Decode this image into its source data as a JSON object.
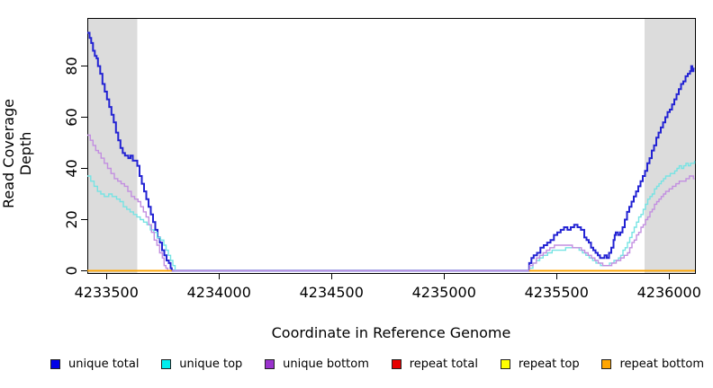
{
  "chart_data": {
    "type": "line",
    "style": "step-after",
    "title": "",
    "xlabel": "Coordinate in Reference Genome",
    "ylabel": "Read Coverage Depth",
    "xlim": [
      4233415,
      4236115
    ],
    "ylim": [
      -0.9,
      98.8
    ],
    "x_ticks": [
      4233500,
      4234000,
      4234500,
      4235000,
      4235500,
      4236000
    ],
    "y_ticks": [
      0,
      20,
      40,
      60,
      80
    ],
    "grid": false,
    "legend_position": "bottom",
    "background_color": "#ffffff",
    "shade_color": "#dcdcdc",
    "axis_color": "#000000",
    "shaded_regions": [
      {
        "x0": 4233415,
        "x1": 4233637
      },
      {
        "x0": 4235891,
        "x1": 4236115
      }
    ],
    "series": [
      {
        "name": "unique total",
        "color": "#2323d3",
        "legend_color": "#0000e6",
        "line_width": 2,
        "points": [
          [
            4233415,
            93
          ],
          [
            4233425,
            91
          ],
          [
            4233432,
            89
          ],
          [
            4233440,
            86
          ],
          [
            4233448,
            84
          ],
          [
            4233456,
            83
          ],
          [
            4233462,
            80
          ],
          [
            4233472,
            77
          ],
          [
            4233482,
            73
          ],
          [
            4233492,
            70
          ],
          [
            4233502,
            67
          ],
          [
            4233512,
            64
          ],
          [
            4233522,
            61
          ],
          [
            4233532,
            58
          ],
          [
            4233542,
            54
          ],
          [
            4233552,
            51
          ],
          [
            4233562,
            48
          ],
          [
            4233572,
            46
          ],
          [
            4233582,
            45
          ],
          [
            4233597,
            44
          ],
          [
            4233607,
            45
          ],
          [
            4233617,
            43
          ],
          [
            4233627,
            43
          ],
          [
            4233637,
            41
          ],
          [
            4233647,
            37
          ],
          [
            4233657,
            34
          ],
          [
            4233667,
            31
          ],
          [
            4233677,
            28
          ],
          [
            4233687,
            25
          ],
          [
            4233697,
            22
          ],
          [
            4233707,
            19
          ],
          [
            4233717,
            16
          ],
          [
            4233727,
            13
          ],
          [
            4233737,
            11
          ],
          [
            4233747,
            8
          ],
          [
            4233757,
            6
          ],
          [
            4233767,
            4
          ],
          [
            4233777,
            3
          ],
          [
            4233785,
            1
          ],
          [
            4233790,
            0
          ],
          [
            4235378,
            3
          ],
          [
            4235388,
            5
          ],
          [
            4235398,
            6
          ],
          [
            4235413,
            7
          ],
          [
            4235428,
            9
          ],
          [
            4235443,
            10
          ],
          [
            4235458,
            11
          ],
          [
            4235473,
            12
          ],
          [
            4235488,
            14
          ],
          [
            4235503,
            15
          ],
          [
            4235518,
            16
          ],
          [
            4235533,
            17
          ],
          [
            4235548,
            16
          ],
          [
            4235563,
            17
          ],
          [
            4235578,
            18
          ],
          [
            4235593,
            17
          ],
          [
            4235608,
            16
          ],
          [
            4235623,
            13
          ],
          [
            4235633,
            12
          ],
          [
            4235643,
            11
          ],
          [
            4235653,
            9
          ],
          [
            4235663,
            8
          ],
          [
            4235673,
            7
          ],
          [
            4235683,
            6
          ],
          [
            4235693,
            5
          ],
          [
            4235703,
            5
          ],
          [
            4235713,
            6
          ],
          [
            4235723,
            5
          ],
          [
            4235733,
            7
          ],
          [
            4235743,
            9
          ],
          [
            4235753,
            12
          ],
          [
            4235758,
            14
          ],
          [
            4235763,
            15
          ],
          [
            4235773,
            14
          ],
          [
            4235783,
            15
          ],
          [
            4235793,
            17
          ],
          [
            4235803,
            20
          ],
          [
            4235813,
            23
          ],
          [
            4235823,
            25
          ],
          [
            4235833,
            27
          ],
          [
            4235843,
            29
          ],
          [
            4235853,
            31
          ],
          [
            4235863,
            33
          ],
          [
            4235873,
            35
          ],
          [
            4235883,
            37
          ],
          [
            4235893,
            39
          ],
          [
            4235903,
            42
          ],
          [
            4235913,
            44
          ],
          [
            4235923,
            47
          ],
          [
            4235933,
            49
          ],
          [
            4235943,
            52
          ],
          [
            4235953,
            54
          ],
          [
            4235963,
            56
          ],
          [
            4235973,
            58
          ],
          [
            4235983,
            60
          ],
          [
            4235993,
            62
          ],
          [
            4236003,
            63
          ],
          [
            4236013,
            65
          ],
          [
            4236023,
            67
          ],
          [
            4236033,
            69
          ],
          [
            4236043,
            71
          ],
          [
            4236053,
            73
          ],
          [
            4236063,
            74
          ],
          [
            4236073,
            76
          ],
          [
            4236083,
            77
          ],
          [
            4236093,
            78
          ],
          [
            4236098,
            80
          ],
          [
            4236103,
            78
          ],
          [
            4236108,
            79
          ],
          [
            4236113,
            79
          ]
        ]
      },
      {
        "name": "unique top",
        "color": "#76e3e3",
        "legend_color": "#00eeee",
        "line_width": 1.4,
        "points": [
          [
            4233415,
            37
          ],
          [
            4233430,
            35
          ],
          [
            4233445,
            33
          ],
          [
            4233460,
            31
          ],
          [
            4233475,
            30
          ],
          [
            4233490,
            29
          ],
          [
            4233510,
            30
          ],
          [
            4233525,
            29
          ],
          [
            4233545,
            28
          ],
          [
            4233560,
            27
          ],
          [
            4233575,
            25
          ],
          [
            4233590,
            24
          ],
          [
            4233605,
            23
          ],
          [
            4233620,
            22
          ],
          [
            4233635,
            21
          ],
          [
            4233650,
            20
          ],
          [
            4233665,
            19
          ],
          [
            4233680,
            18
          ],
          [
            4233695,
            16
          ],
          [
            4233710,
            15
          ],
          [
            4233725,
            13
          ],
          [
            4233740,
            12
          ],
          [
            4233755,
            10
          ],
          [
            4233765,
            8
          ],
          [
            4233775,
            6
          ],
          [
            4233785,
            4
          ],
          [
            4233795,
            2
          ],
          [
            4233805,
            0
          ],
          [
            4235380,
            1
          ],
          [
            4235395,
            3
          ],
          [
            4235410,
            4
          ],
          [
            4235425,
            5
          ],
          [
            4235440,
            6
          ],
          [
            4235460,
            7
          ],
          [
            4235480,
            8
          ],
          [
            4235510,
            8
          ],
          [
            4235540,
            9
          ],
          [
            4235570,
            9
          ],
          [
            4235600,
            8
          ],
          [
            4235615,
            7
          ],
          [
            4235630,
            6
          ],
          [
            4235645,
            5
          ],
          [
            4235660,
            4
          ],
          [
            4235675,
            3
          ],
          [
            4235695,
            2
          ],
          [
            4235715,
            2
          ],
          [
            4235735,
            3
          ],
          [
            4235755,
            4
          ],
          [
            4235775,
            5
          ],
          [
            4235785,
            6
          ],
          [
            4235795,
            8
          ],
          [
            4235805,
            9
          ],
          [
            4235815,
            11
          ],
          [
            4235825,
            13
          ],
          [
            4235835,
            15
          ],
          [
            4235845,
            17
          ],
          [
            4235855,
            19
          ],
          [
            4235865,
            21
          ],
          [
            4235875,
            22
          ],
          [
            4235885,
            24
          ],
          [
            4235895,
            26
          ],
          [
            4235905,
            28
          ],
          [
            4235915,
            29
          ],
          [
            4235925,
            30
          ],
          [
            4235935,
            32
          ],
          [
            4235945,
            33
          ],
          [
            4235955,
            34
          ],
          [
            4235965,
            35
          ],
          [
            4235975,
            36
          ],
          [
            4235985,
            37
          ],
          [
            4235995,
            37
          ],
          [
            4236005,
            38
          ],
          [
            4236015,
            38
          ],
          [
            4236025,
            39
          ],
          [
            4236035,
            40
          ],
          [
            4236045,
            41
          ],
          [
            4236055,
            40
          ],
          [
            4236065,
            41
          ],
          [
            4236075,
            42
          ],
          [
            4236085,
            41
          ],
          [
            4236095,
            42
          ],
          [
            4236105,
            42
          ],
          [
            4236113,
            43
          ]
        ]
      },
      {
        "name": "unique bottom",
        "color": "#c28ee0",
        "legend_color": "#9a32cd",
        "line_width": 1.4,
        "points": [
          [
            4233415,
            53
          ],
          [
            4233428,
            51
          ],
          [
            4233440,
            49
          ],
          [
            4233452,
            47
          ],
          [
            4233464,
            46
          ],
          [
            4233476,
            44
          ],
          [
            4233490,
            42
          ],
          [
            4233505,
            40
          ],
          [
            4233520,
            38
          ],
          [
            4233535,
            36
          ],
          [
            4233550,
            35
          ],
          [
            4233565,
            34
          ],
          [
            4233580,
            33
          ],
          [
            4233595,
            31
          ],
          [
            4233610,
            29
          ],
          [
            4233625,
            28
          ],
          [
            4233640,
            27
          ],
          [
            4233652,
            25
          ],
          [
            4233664,
            23
          ],
          [
            4233676,
            21
          ],
          [
            4233688,
            18
          ],
          [
            4233700,
            15
          ],
          [
            4233712,
            12
          ],
          [
            4233724,
            10
          ],
          [
            4233736,
            7
          ],
          [
            4233748,
            5
          ],
          [
            4233756,
            2
          ],
          [
            4233764,
            1
          ],
          [
            4233772,
            0
          ],
          [
            4235380,
            2
          ],
          [
            4235395,
            3
          ],
          [
            4235410,
            5
          ],
          [
            4235425,
            6
          ],
          [
            4235440,
            7
          ],
          [
            4235455,
            8
          ],
          [
            4235470,
            9
          ],
          [
            4235490,
            10
          ],
          [
            4235520,
            10
          ],
          [
            4235550,
            10
          ],
          [
            4235570,
            9
          ],
          [
            4235590,
            9
          ],
          [
            4235610,
            8
          ],
          [
            4235625,
            7
          ],
          [
            4235640,
            6
          ],
          [
            4235655,
            5
          ],
          [
            4235670,
            4
          ],
          [
            4235685,
            3
          ],
          [
            4235705,
            2
          ],
          [
            4235725,
            2
          ],
          [
            4235745,
            3
          ],
          [
            4235765,
            4
          ],
          [
            4235785,
            5
          ],
          [
            4235800,
            6
          ],
          [
            4235815,
            7
          ],
          [
            4235825,
            9
          ],
          [
            4235835,
            11
          ],
          [
            4235845,
            12
          ],
          [
            4235855,
            14
          ],
          [
            4235865,
            15
          ],
          [
            4235875,
            17
          ],
          [
            4235885,
            18
          ],
          [
            4235895,
            20
          ],
          [
            4235905,
            21
          ],
          [
            4235915,
            23
          ],
          [
            4235925,
            24
          ],
          [
            4235935,
            26
          ],
          [
            4235945,
            27
          ],
          [
            4235955,
            28
          ],
          [
            4235965,
            29
          ],
          [
            4235975,
            30
          ],
          [
            4235985,
            31
          ],
          [
            4236000,
            32
          ],
          [
            4236015,
            33
          ],
          [
            4236030,
            34
          ],
          [
            4236045,
            35
          ],
          [
            4236060,
            35
          ],
          [
            4236075,
            36
          ],
          [
            4236090,
            37
          ],
          [
            4236100,
            37
          ],
          [
            4236108,
            36
          ],
          [
            4236113,
            36
          ]
        ]
      },
      {
        "name": "repeat total",
        "color": "#dd0000",
        "legend_color": "#e60000",
        "line_width": 1.4,
        "points": [
          [
            4233415,
            0
          ],
          [
            4233790,
            0
          ],
          [
            null,
            0
          ],
          [
            4235378,
            0
          ],
          [
            4236115,
            0
          ]
        ]
      },
      {
        "name": "repeat top",
        "color": "#ffff00",
        "legend_color": "#ffff00",
        "line_width": 1.4,
        "points": [
          [
            4233415,
            0
          ],
          [
            4233790,
            0
          ],
          [
            null,
            0
          ],
          [
            4235378,
            0
          ],
          [
            4236115,
            0
          ]
        ]
      },
      {
        "name": "repeat bottom",
        "color": "#ffa500",
        "legend_color": "#ffa500",
        "line_width": 1.8,
        "points": [
          [
            4233415,
            0
          ],
          [
            4233790,
            0
          ],
          [
            null,
            0
          ],
          [
            4235378,
            0
          ],
          [
            4236115,
            0
          ]
        ]
      }
    ]
  }
}
